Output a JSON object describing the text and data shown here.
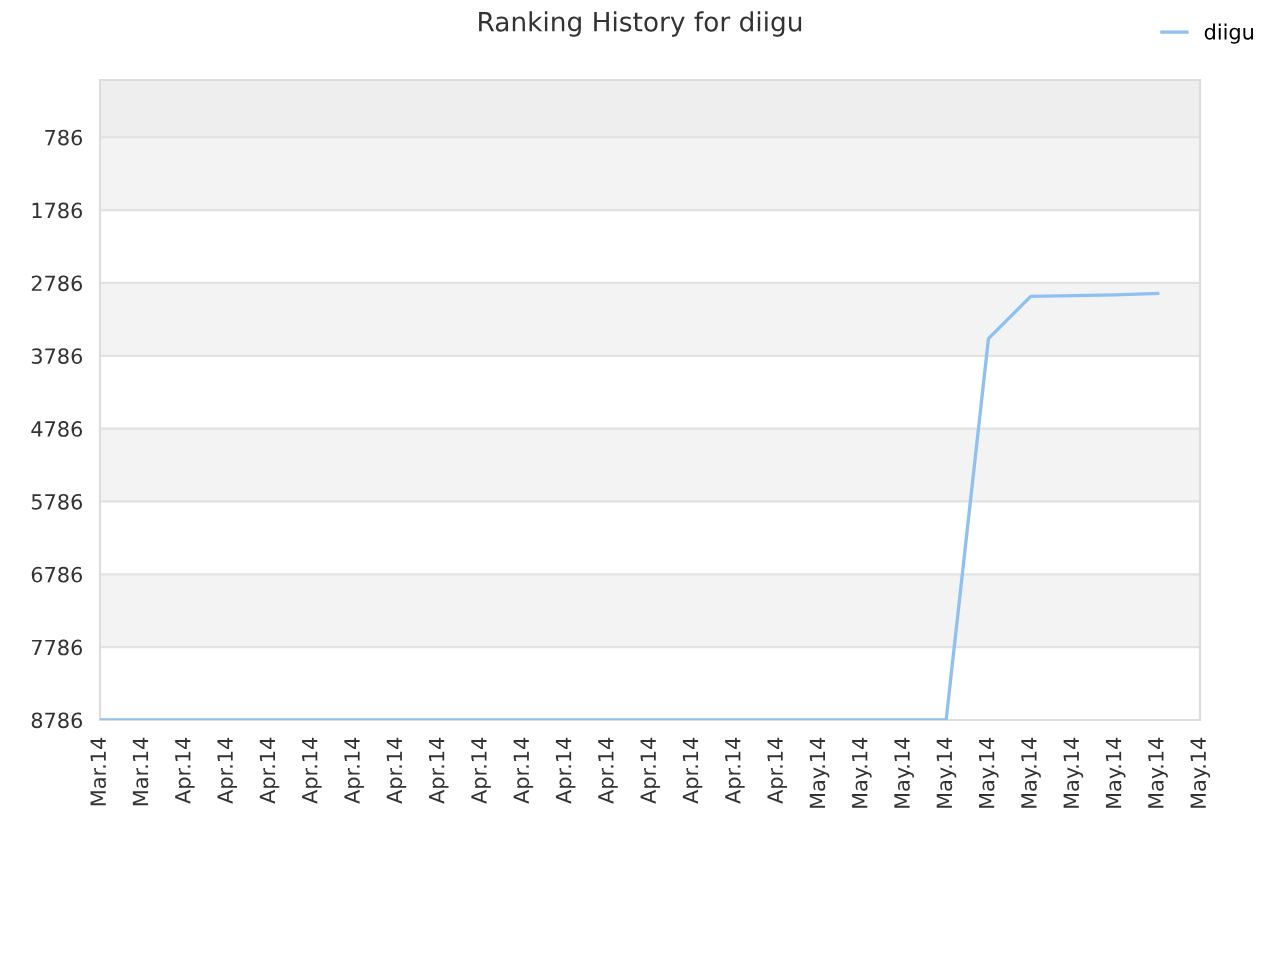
{
  "chart_data": {
    "type": "line",
    "title": "Ranking History for diigu",
    "categories": [
      "Mar.14",
      "Mar.14",
      "Apr.14",
      "Apr.14",
      "Apr.14",
      "Apr.14",
      "Apr.14",
      "Apr.14",
      "Apr.14",
      "Apr.14",
      "Apr.14",
      "Apr.14",
      "Apr.14",
      "Apr.14",
      "Apr.14",
      "Apr.14",
      "Apr.14",
      "May.14",
      "May.14",
      "May.14",
      "May.14",
      "May.14",
      "May.14",
      "May.14",
      "May.14",
      "May.14",
      "May.14"
    ],
    "series": [
      {
        "name": "diigu",
        "color": "#90c0f0",
        "values": [
          8786,
          8786,
          8786,
          8786,
          8786,
          8786,
          8786,
          8786,
          8786,
          8786,
          8786,
          8786,
          8786,
          8786,
          8786,
          8786,
          8786,
          8786,
          8786,
          8786,
          8786,
          3550,
          2970,
          2960,
          2950,
          2930,
          null
        ]
      }
    ],
    "ylim": [
      8786,
      0
    ],
    "yticks": [
      786,
      1786,
      2786,
      3786,
      4786,
      5786,
      6786,
      7786,
      8786
    ],
    "grid": "y",
    "legend": "top right",
    "marker": "none",
    "line_style": "solid"
  }
}
